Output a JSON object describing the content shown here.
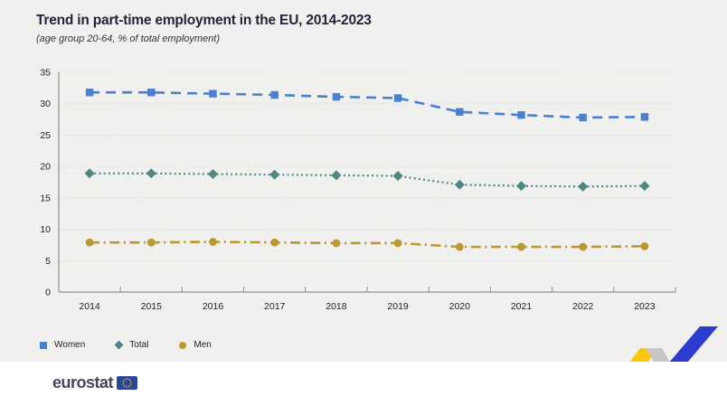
{
  "header": {
    "title": "Trend in part-time employment in the EU, 2014-2023",
    "subtitle": "(age group 20-64, % of total employment)"
  },
  "chart_data": {
    "type": "line",
    "categories": [
      "2014",
      "2015",
      "2016",
      "2017",
      "2018",
      "2019",
      "2020",
      "2021",
      "2022",
      "2023"
    ],
    "series": [
      {
        "name": "Women",
        "values": [
          31.8,
          31.8,
          31.6,
          31.4,
          31.1,
          30.9,
          28.7,
          28.2,
          27.8,
          27.9
        ],
        "color": "#4a80cf",
        "marker": "square",
        "dash": "dashed"
      },
      {
        "name": "Total",
        "values": [
          18.9,
          18.9,
          18.8,
          18.7,
          18.6,
          18.5,
          17.1,
          16.9,
          16.8,
          16.9
        ],
        "color": "#4f8783",
        "marker": "diamond",
        "dash": "dotted"
      },
      {
        "name": "Men",
        "values": [
          7.9,
          7.9,
          8.0,
          7.9,
          7.8,
          7.8,
          7.2,
          7.2,
          7.2,
          7.3
        ],
        "color": "#bc992f",
        "marker": "circle",
        "dash": "dashdot"
      }
    ],
    "xlabel": "",
    "ylabel": "",
    "ylim": [
      0,
      35
    ],
    "ytick_step": 5,
    "grid": "horizontal-dotted",
    "legend_position": "bottom-left",
    "axis_color": "#8f8f8f",
    "grid_color": "#d8d8d3"
  },
  "footer": {
    "logo_text": "eurostat",
    "flag_color": "#2a4599",
    "deco_colors": {
      "yellow": "#fdc608",
      "gray": "#c6c6c6",
      "blue": "#2c3cd0"
    }
  }
}
